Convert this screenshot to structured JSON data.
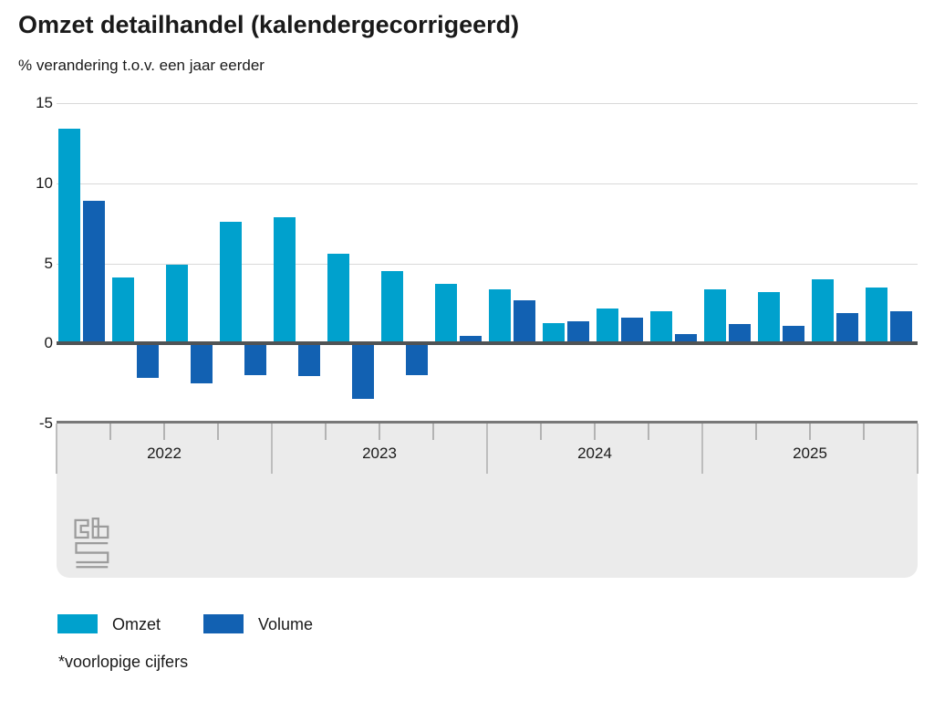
{
  "title": "Omzet detailhandel (kalendergecorrigeerd)",
  "subtitle": "% verandering t.o.v. een jaar eerder",
  "footnote": "*voorlopige cijfers",
  "logo": "cbs-logo",
  "colors": {
    "omzet": "#00a1cd",
    "volume": "#1261b2",
    "gridline": "#d9d9d9",
    "zero_line": "#4f5355",
    "axis_line": "#787878",
    "axis_band": "#ebebeb",
    "tick": "#b3b3b3",
    "logo_gray": "#9c9c9c"
  },
  "legend": {
    "omzet_label": "Omzet",
    "volume_label": "Volume"
  },
  "chart_data": {
    "type": "bar",
    "title": "Omzet detailhandel (kalendergecorrigeerd)",
    "ylabel": "% verandering t.o.v. een jaar eerder",
    "xlabel": "",
    "grid": true,
    "legend_position": "bottom",
    "ylim": [
      -5,
      15
    ],
    "yticks": [
      15,
      10,
      5,
      0,
      -5
    ],
    "year_labels": [
      "2022",
      "2023",
      "2024",
      "2025"
    ],
    "categories": [
      "2022 Q1",
      "2022 Q2",
      "2022 Q3",
      "2022 Q4",
      "2023 Q1",
      "2023 Q2",
      "2023 Q3",
      "2023 Q4",
      "2024 Q1",
      "2024 Q2",
      "2024 Q3",
      "2024 Q4",
      "2025 Q1",
      "2025 Q2",
      "2025 Q3",
      "2025 Q4"
    ],
    "series": [
      {
        "name": "Omzet",
        "color": "#00a1cd",
        "values": [
          13.4,
          4.1,
          4.9,
          7.6,
          7.9,
          5.6,
          4.5,
          3.7,
          3.4,
          1.3,
          2.2,
          2.0,
          3.4,
          3.2,
          4.0,
          3.5
        ]
      },
      {
        "name": "Volume",
        "color": "#1261b2",
        "values": [
          8.9,
          -2.1,
          -2.4,
          -1.9,
          -2.0,
          -3.4,
          -1.9,
          0.5,
          2.7,
          1.4,
          1.6,
          0.6,
          1.2,
          1.1,
          1.9,
          2.0
        ]
      }
    ]
  }
}
